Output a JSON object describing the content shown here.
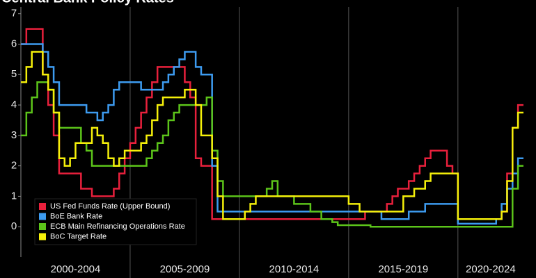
{
  "chart_data": {
    "type": "step",
    "title": "Central Bank Policy Rates",
    "categories": [
      null,
      null,
      null,
      null,
      null,
      null,
      null,
      null,
      null,
      null,
      "2000-2004",
      null,
      null,
      null,
      null,
      null,
      null,
      null,
      null,
      null,
      null,
      null,
      null,
      null,
      null,
      null,
      null,
      null,
      null,
      null,
      "2005-2009",
      null,
      null,
      null,
      null,
      null,
      null,
      null,
      null,
      null,
      null,
      null,
      null,
      null,
      null,
      null,
      null,
      null,
      null,
      null,
      "2010-2014",
      null,
      null,
      null,
      null,
      null,
      null,
      null,
      null,
      null,
      null,
      null,
      null,
      null,
      null,
      null,
      null,
      null,
      null,
      null,
      "2015-2019",
      null,
      null,
      null,
      null,
      null,
      null,
      null,
      null,
      null,
      null,
      null,
      null,
      null,
      null,
      null,
      "2020-2024",
      null,
      null,
      null,
      null,
      null
    ],
    "series": [
      {
        "name": "US Fed Funds Rate (Upper Bound)",
        "color": "#e8203c",
        "values": [
          6.0,
          6.5,
          6.5,
          6.5,
          5.0,
          4.0,
          3.0,
          1.75,
          1.75,
          1.75,
          1.75,
          1.25,
          1.25,
          1.0,
          1.0,
          1.0,
          1.0,
          1.25,
          1.75,
          2.25,
          2.75,
          3.25,
          3.75,
          4.25,
          4.75,
          5.25,
          5.25,
          5.25,
          5.25,
          5.25,
          4.75,
          4.25,
          2.25,
          2.0,
          2.0,
          0.25,
          0.25,
          0.25,
          0.25,
          0.25,
          0.25,
          0.25,
          0.25,
          0.25,
          0.25,
          0.25,
          0.25,
          0.25,
          0.25,
          0.25,
          0.25,
          0.25,
          0.25,
          0.25,
          0.25,
          0.25,
          0.25,
          0.25,
          0.25,
          0.25,
          0.25,
          0.25,
          0.25,
          0.5,
          0.5,
          0.5,
          0.5,
          0.75,
          1.0,
          1.25,
          1.25,
          1.5,
          1.75,
          2.0,
          2.25,
          2.5,
          2.5,
          2.5,
          2.0,
          1.75,
          0.25,
          0.25,
          0.25,
          0.25,
          0.25,
          0.25,
          0.25,
          0.25,
          0.5,
          1.75,
          3.25,
          4.0
        ]
      },
      {
        "name": "BoE Bank Rate",
        "color": "#3d9bf0",
        "values": [
          6.0,
          6.0,
          6.0,
          6.0,
          5.75,
          5.25,
          4.75,
          4.0,
          4.0,
          4.0,
          4.0,
          4.0,
          3.75,
          3.75,
          3.5,
          3.75,
          4.0,
          4.5,
          4.75,
          4.75,
          4.75,
          4.75,
          4.5,
          4.5,
          4.5,
          4.5,
          4.75,
          5.0,
          5.25,
          5.5,
          5.75,
          5.75,
          5.25,
          5.0,
          5.0,
          2.0,
          0.5,
          0.5,
          0.5,
          0.5,
          0.5,
          0.5,
          0.5,
          0.5,
          0.5,
          0.5,
          0.5,
          0.5,
          0.5,
          0.5,
          0.5,
          0.5,
          0.5,
          0.5,
          0.5,
          0.5,
          0.5,
          0.5,
          0.5,
          0.5,
          0.5,
          0.5,
          0.5,
          0.5,
          0.5,
          0.5,
          0.25,
          0.25,
          0.25,
          0.25,
          0.25,
          0.5,
          0.5,
          0.5,
          0.75,
          0.75,
          0.75,
          0.75,
          0.75,
          0.75,
          0.1,
          0.1,
          0.1,
          0.1,
          0.1,
          0.1,
          0.1,
          0.25,
          0.75,
          1.25,
          1.75,
          2.25
        ]
      },
      {
        "name": "ECB Main Refinancing Operations Rate",
        "color": "#5cc41a",
        "values": [
          3.0,
          3.75,
          4.25,
          4.75,
          4.75,
          4.5,
          3.75,
          3.25,
          3.25,
          3.25,
          3.25,
          2.75,
          2.5,
          2.0,
          2.0,
          2.0,
          2.0,
          2.0,
          2.0,
          2.0,
          2.0,
          2.0,
          2.0,
          2.25,
          2.5,
          2.75,
          3.0,
          3.5,
          3.75,
          4.0,
          4.0,
          4.0,
          4.0,
          4.0,
          4.25,
          2.5,
          1.5,
          1.0,
          1.0,
          1.0,
          1.0,
          1.0,
          1.0,
          1.0,
          1.0,
          1.25,
          1.5,
          1.0,
          1.0,
          1.0,
          0.75,
          0.75,
          0.75,
          0.5,
          0.5,
          0.25,
          0.25,
          0.15,
          0.05,
          0.05,
          0.05,
          0.05,
          0.05,
          0.05,
          0,
          0,
          0,
          0,
          0,
          0,
          0,
          0,
          0,
          0,
          0,
          0,
          0,
          0,
          0,
          0,
          0,
          0,
          0,
          0,
          0,
          0,
          0,
          0,
          0,
          0,
          1.25,
          2.0
        ]
      },
      {
        "name": "BoC Target Rate",
        "color": "#f5f00a",
        "values": [
          4.75,
          5.25,
          5.75,
          5.75,
          5.0,
          4.5,
          3.75,
          2.25,
          2.0,
          2.25,
          2.75,
          2.75,
          2.75,
          3.25,
          3.0,
          2.75,
          2.25,
          2.0,
          2.25,
          2.5,
          2.5,
          2.5,
          2.75,
          3.0,
          3.5,
          4.0,
          4.25,
          4.25,
          4.25,
          4.25,
          4.5,
          4.5,
          4.0,
          3.0,
          3.0,
          2.25,
          1.0,
          0.25,
          0.25,
          0.25,
          0.25,
          0.5,
          0.75,
          1.0,
          1.0,
          1.0,
          1.0,
          1.0,
          1.0,
          1.0,
          1.0,
          1.0,
          1.0,
          1.0,
          1.0,
          1.0,
          1.0,
          1.0,
          1.0,
          1.0,
          0.75,
          0.75,
          0.5,
          0.5,
          0.5,
          0.5,
          0.5,
          0.5,
          0.5,
          0.5,
          1.0,
          1.0,
          1.25,
          1.25,
          1.5,
          1.75,
          1.75,
          1.75,
          1.75,
          1.75,
          0.25,
          0.25,
          0.25,
          0.25,
          0.25,
          0.25,
          0.25,
          0.25,
          0.5,
          1.5,
          3.25,
          3.75
        ]
      }
    ],
    "ylim": [
      -1,
      7.45
    ],
    "yticks": [
      0,
      1,
      2,
      3,
      4,
      5,
      6,
      7
    ],
    "legend": "lower left"
  }
}
